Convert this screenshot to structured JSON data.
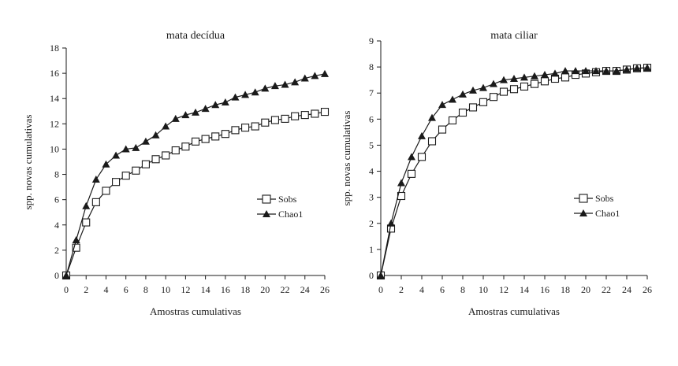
{
  "chart_data": [
    {
      "type": "line",
      "title": "mata decídua",
      "xlabel": "Amostras cumulativas",
      "ylabel": "spp. novas cumulativas",
      "xlim": [
        0,
        26
      ],
      "ylim": [
        0,
        18
      ],
      "xticks": [
        "0",
        "2",
        "4",
        "6",
        "8",
        "10",
        "12",
        "14",
        "16",
        "18",
        "20",
        "22",
        "24",
        "26"
      ],
      "yticks": [
        "0",
        "2",
        "4",
        "6",
        "8",
        "10",
        "12",
        "14",
        "16",
        "18"
      ],
      "legend_position": "right",
      "x": [
        0,
        1,
        2,
        3,
        4,
        5,
        6,
        7,
        8,
        9,
        10,
        11,
        12,
        13,
        14,
        15,
        16,
        17,
        18,
        19,
        20,
        21,
        22,
        23,
        24,
        25,
        26
      ],
      "series": [
        {
          "name": "Sobs",
          "marker": "open-square",
          "values": [
            0,
            2.2,
            4.2,
            5.8,
            6.7,
            7.4,
            7.9,
            8.3,
            8.8,
            9.2,
            9.5,
            9.9,
            10.2,
            10.6,
            10.8,
            11.0,
            11.2,
            11.5,
            11.7,
            11.8,
            12.1,
            12.3,
            12.4,
            12.6,
            12.7,
            12.8,
            12.95
          ]
        },
        {
          "name": "Chao1",
          "marker": "filled-triangle",
          "values": [
            0,
            2.8,
            5.5,
            7.6,
            8.8,
            9.5,
            10.0,
            10.1,
            10.6,
            11.1,
            11.8,
            12.4,
            12.7,
            12.9,
            13.2,
            13.5,
            13.7,
            14.1,
            14.3,
            14.5,
            14.8,
            15.0,
            15.1,
            15.3,
            15.6,
            15.8,
            15.95
          ]
        }
      ]
    },
    {
      "type": "line",
      "title": "mata ciliar",
      "xlabel": "Amostras cumulativas",
      "ylabel": "spp. novas cumulativas",
      "xlim": [
        0,
        26
      ],
      "ylim": [
        0,
        9
      ],
      "xticks": [
        "0",
        "2",
        "4",
        "6",
        "8",
        "10",
        "12",
        "14",
        "16",
        "18",
        "20",
        "22",
        "24",
        "26"
      ],
      "yticks": [
        "0",
        "1",
        "2",
        "3",
        "4",
        "5",
        "6",
        "7",
        "8",
        "9"
      ],
      "legend_position": "right",
      "x": [
        0,
        1,
        2,
        3,
        4,
        5,
        6,
        7,
        8,
        9,
        10,
        11,
        12,
        13,
        14,
        15,
        16,
        17,
        18,
        19,
        20,
        21,
        22,
        23,
        24,
        25,
        26
      ],
      "series": [
        {
          "name": "Sobs",
          "marker": "open-square",
          "values": [
            0,
            1.8,
            3.05,
            3.9,
            4.55,
            5.15,
            5.6,
            5.95,
            6.25,
            6.45,
            6.65,
            6.85,
            7.05,
            7.15,
            7.25,
            7.35,
            7.45,
            7.55,
            7.6,
            7.7,
            7.75,
            7.8,
            7.85,
            7.85,
            7.9,
            7.95,
            7.97
          ]
        },
        {
          "name": "Chao1",
          "marker": "filled-triangle",
          "values": [
            0,
            2.0,
            3.55,
            4.55,
            5.35,
            6.05,
            6.55,
            6.75,
            6.95,
            7.1,
            7.2,
            7.35,
            7.5,
            7.55,
            7.6,
            7.65,
            7.7,
            7.75,
            7.85,
            7.85,
            7.85,
            7.85,
            7.85,
            7.85,
            7.9,
            7.95,
            7.97
          ]
        }
      ]
    }
  ]
}
